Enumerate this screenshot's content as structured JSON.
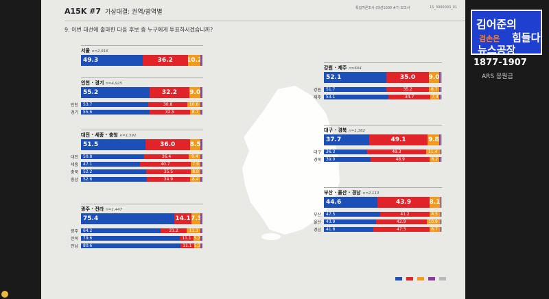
{
  "header": {
    "code": "A15K #7",
    "subtitle": "가상대결: 권역/광역별",
    "question": "9. 이번 대선에 출마한 다음 후보 중 누구에게 투표하시겠습니까?",
    "meta_a": "특집여론조사 (대선1000 #7) 보고서",
    "meta_b": "15_3000003_01"
  },
  "colors": {
    "blue": "#1c4fb8",
    "red": "#e1232a",
    "orange": "#f39a1b",
    "purple": "#8a3a9a",
    "gray": "#b8b8b8"
  },
  "chart_data": {
    "type": "bar",
    "orientation": "horizontal-stacked",
    "xlim": [
      0,
      100
    ],
    "regions": [
      {
        "name": "서울",
        "n": "n=2,916",
        "main": [
          49.3,
          36.2,
          10.2,
          1.0,
          1.0
        ],
        "subs": []
      },
      {
        "name": "인천 · 경기",
        "n": "n=4,925",
        "main": [
          55.2,
          32.2,
          9.0,
          1.0,
          1.0
        ],
        "subs": [
          {
            "name": "인천",
            "values": [
              53.7,
              30.8,
              10.6,
              1.0,
              1.0
            ]
          },
          {
            "name": "경기",
            "values": [
              55.6,
              32.5,
              8.7,
              1.0,
              1.0
            ]
          }
        ]
      },
      {
        "name": "대전 · 세종 · 충청",
        "n": "n=1,592",
        "main": [
          51.5,
          36.0,
          8.5,
          1.0,
          1.0
        ],
        "subs": [
          {
            "name": "대전",
            "values": [
              50.8,
              36.4,
              9.4,
              1.0,
              1.0
            ]
          },
          {
            "name": "세종",
            "values": [
              47.1,
              40.7,
              7.9,
              1.0,
              1.0
            ]
          },
          {
            "name": "충북",
            "values": [
              52.2,
              35.5,
              8.0,
              1.0,
              1.0
            ]
          },
          {
            "name": "충남",
            "values": [
              52.6,
              34.9,
              8.4,
              1.0,
              1.0
            ]
          }
        ]
      },
      {
        "name": "광주 · 전라",
        "n": "n=1,447",
        "main": [
          75.4,
          14.1,
          7.3,
          1.0,
          1.0
        ],
        "subs": [
          {
            "name": "광주",
            "values": [
              64.2,
              21.2,
              11.1,
              1.0,
              1.0
            ]
          },
          {
            "name": "전북",
            "values": [
              79.6,
              11.1,
              5.7,
              1.0,
              1.0
            ]
          },
          {
            "name": "전남",
            "values": [
              80.6,
              11.1,
              5.3,
              1.0,
              1.0
            ]
          }
        ]
      },
      {
        "name": "강원 · 제주",
        "n": "n=604",
        "main": [
          52.1,
          35.0,
          9.0,
          1.0,
          1.0
        ],
        "subs": [
          {
            "name": "강원",
            "values": [
              51.7,
              35.2,
              8.7,
              1.0,
              1.0
            ]
          },
          {
            "name": "제주",
            "values": [
              53.1,
              34.7,
              7.4,
              1.0,
              1.0
            ]
          }
        ]
      },
      {
        "name": "대구 · 경북",
        "n": "n=1,362",
        "main": [
          37.7,
          49.1,
          9.8,
          1.0,
          1.0
        ],
        "subs": [
          {
            "name": "대구",
            "values": [
              36.3,
              49.3,
              11.4,
              1.0,
              1.0
            ]
          },
          {
            "name": "경북",
            "values": [
              39.0,
              48.9,
              8.2,
              1.0,
              1.0
            ]
          }
        ]
      },
      {
        "name": "부산 · 울산 · 경남",
        "n": "n=2,113",
        "main": [
          44.6,
          43.9,
          8.1,
          1.0,
          1.0
        ],
        "subs": [
          {
            "name": "부산",
            "values": [
              47.5,
              41.2,
              8.5,
              1.0,
              1.0
            ]
          },
          {
            "name": "울산",
            "values": [
              43.9,
              42.9,
              10.9,
              1.0,
              1.0
            ]
          },
          {
            "name": "경남",
            "values": [
              41.8,
              47.3,
              8.7,
              1.0,
              1.0
            ]
          }
        ]
      }
    ]
  },
  "logo": {
    "line1": "김어준의",
    "line2a": "겸손은",
    "line2b": "힘들다",
    "line3": "뉴스공장",
    "phone": "1877-1907",
    "ars": "ARS 응원금"
  }
}
